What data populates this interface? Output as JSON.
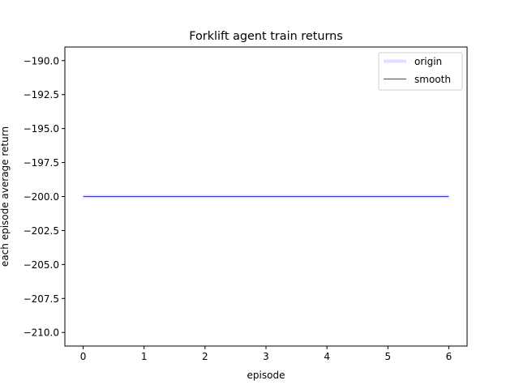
{
  "chart_data": {
    "type": "line",
    "title": "Forklift agent train returns",
    "xlabel": "episode",
    "ylabel": "each episode average return",
    "xlim": [
      -0.3,
      6.3
    ],
    "ylim": [
      -211.0,
      -189.0
    ],
    "xticks": [
      0,
      1,
      2,
      3,
      4,
      5,
      6
    ],
    "xtick_labels": [
      "0",
      "1",
      "2",
      "3",
      "4",
      "5",
      "6"
    ],
    "yticks": [
      -190.0,
      -192.5,
      -195.0,
      -197.5,
      -200.0,
      -202.5,
      -205.0,
      -207.5,
      -210.0
    ],
    "ytick_labels": [
      "−190.0",
      "−192.5",
      "−195.0",
      "−197.5",
      "−200.0",
      "−202.5",
      "−205.0",
      "−207.5",
      "−210.0"
    ],
    "grid": false,
    "legend_position": "top-right",
    "series": [
      {
        "name": "origin",
        "color": "#e0e0ff",
        "x": [
          0,
          1,
          2,
          3,
          4,
          5,
          6
        ],
        "y": [
          -200,
          -200,
          -200,
          -200,
          -200,
          -200,
          -200
        ]
      },
      {
        "name": "smooth",
        "color": "#0000aa",
        "x": [
          0,
          1,
          2,
          3,
          4,
          5,
          6
        ],
        "y": [
          -200,
          -200,
          -200,
          -200,
          -200,
          -200,
          -200
        ]
      }
    ]
  }
}
